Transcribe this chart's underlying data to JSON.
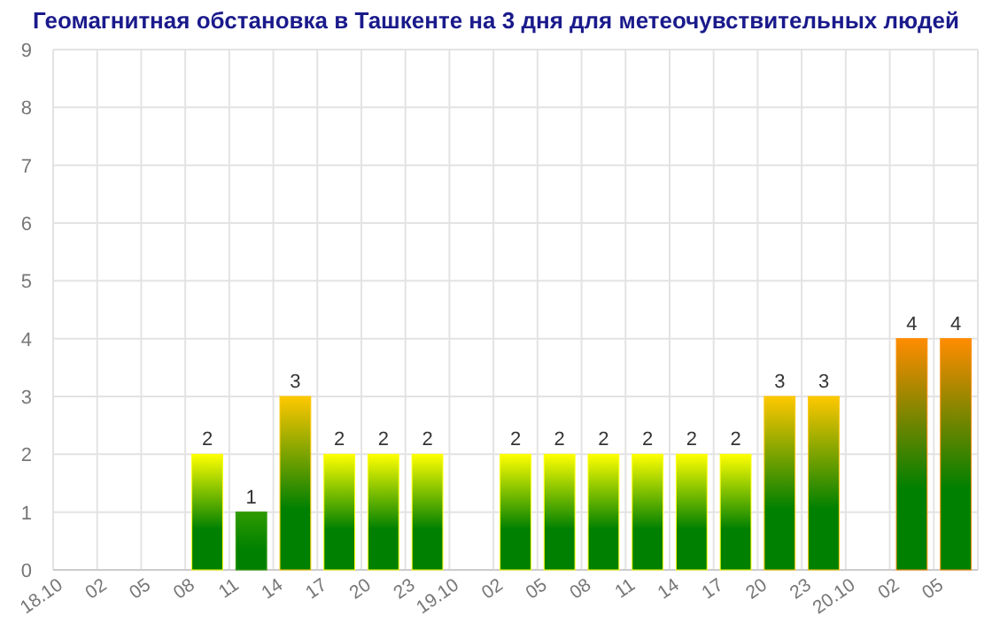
{
  "chart_data": {
    "type": "bar",
    "title": "Геомагнитная обстановка в Ташкенте на 3 дня для метеочувствительных людей",
    "categories": [
      "18.10",
      "02",
      "05",
      "08",
      "11",
      "14",
      "17",
      "20",
      "23",
      "19.10",
      "02",
      "05",
      "08",
      "11",
      "14",
      "17",
      "20",
      "23",
      "20.10",
      "02",
      "05"
    ],
    "values": [
      null,
      null,
      null,
      2,
      1,
      3,
      2,
      2,
      2,
      null,
      2,
      2,
      2,
      2,
      2,
      2,
      3,
      3,
      null,
      4,
      4
    ],
    "colors": [
      null,
      null,
      null,
      "#ffff00",
      "#2e9a00",
      "#ffc800",
      "#ffff00",
      "#ffff00",
      "#ffff00",
      null,
      "#ffff00",
      "#ffff00",
      "#ffff00",
      "#ffff00",
      "#ffff00",
      "#ffff00",
      "#ffc800",
      "#ffc800",
      null,
      "#ff8c00",
      "#ff8c00"
    ],
    "ylim": [
      0,
      9
    ],
    "yticks": [
      0,
      1,
      2,
      3,
      4,
      5,
      6,
      7,
      8,
      9
    ],
    "grid": true,
    "data_labels": true
  }
}
